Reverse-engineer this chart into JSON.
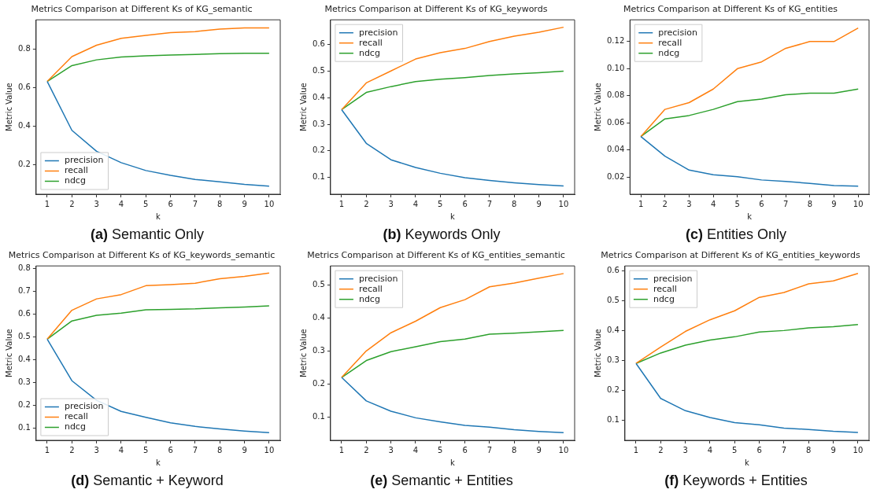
{
  "chart_data": [
    {
      "type": "line",
      "title": "Metrics Comparison at Different Ks of KG_semantic",
      "xlabel": "k",
      "ylabel": "Metric Value",
      "x": [
        1,
        2,
        3,
        4,
        5,
        6,
        7,
        8,
        9,
        10
      ],
      "xlim": [
        0.55,
        10.45
      ],
      "xticks": [
        1,
        2,
        3,
        4,
        5,
        6,
        7,
        8,
        9,
        10
      ],
      "ylim": [
        0.048,
        0.954
      ],
      "yticks": [
        0.2,
        0.4,
        0.6,
        0.8
      ],
      "grid": false,
      "legend": "bottom left",
      "marker": "none",
      "line_style": "solid",
      "annotations": [
        "(a) Semantic Only"
      ],
      "series": [
        {
          "name": "precision",
          "color": "#1f77b4",
          "values": [
            0.634,
            0.38,
            0.271,
            0.212,
            0.171,
            0.146,
            0.125,
            0.112,
            0.099,
            0.09
          ]
        },
        {
          "name": "recall",
          "color": "#ff7f0e",
          "values": [
            0.634,
            0.763,
            0.822,
            0.858,
            0.873,
            0.887,
            0.893,
            0.906,
            0.912,
            0.912
          ]
        },
        {
          "name": "ndcg",
          "color": "#2ca02c",
          "values": [
            0.634,
            0.716,
            0.746,
            0.761,
            0.767,
            0.771,
            0.774,
            0.778,
            0.78,
            0.78
          ]
        }
      ]
    },
    {
      "type": "line",
      "title": "Metrics Comparison at Different Ks of KG_keywords",
      "xlabel": "k",
      "ylabel": "Metric Value",
      "x": [
        1,
        2,
        3,
        4,
        5,
        6,
        7,
        8,
        9,
        10
      ],
      "xlim": [
        0.55,
        10.45
      ],
      "xticks": [
        1,
        2,
        3,
        4,
        5,
        6,
        7,
        8,
        9,
        10
      ],
      "ylim": [
        0.036,
        0.694
      ],
      "yticks": [
        0.1,
        0.2,
        0.3,
        0.4,
        0.5,
        0.6
      ],
      "grid": false,
      "legend": "top left",
      "marker": "none",
      "line_style": "solid",
      "annotations": [
        "(b) Keywords Only"
      ],
      "series": [
        {
          "name": "precision",
          "color": "#1f77b4",
          "values": [
            0.355,
            0.228,
            0.166,
            0.137,
            0.115,
            0.098,
            0.088,
            0.079,
            0.072,
            0.067
          ]
        },
        {
          "name": "recall",
          "color": "#ff7f0e",
          "values": [
            0.355,
            0.456,
            0.501,
            0.546,
            0.57,
            0.586,
            0.612,
            0.632,
            0.647,
            0.666
          ]
        },
        {
          "name": "ndcg",
          "color": "#2ca02c",
          "values": [
            0.355,
            0.42,
            0.442,
            0.461,
            0.47,
            0.476,
            0.484,
            0.49,
            0.494,
            0.5
          ]
        }
      ]
    },
    {
      "type": "line",
      "title": "Metrics Comparison at Different Ks of KG_entities",
      "xlabel": "k",
      "ylabel": "Metric Value",
      "x": [
        1,
        2,
        3,
        4,
        5,
        6,
        7,
        8,
        9,
        10
      ],
      "xlim": [
        0.55,
        10.45
      ],
      "xticks": [
        1,
        2,
        3,
        4,
        5,
        6,
        7,
        8,
        9,
        10
      ],
      "ylim": [
        0.0075,
        0.136
      ],
      "yticks": [
        {
          "value": 0.02,
          "label": "0.02"
        },
        {
          "value": 0.04,
          "label": "0.04"
        },
        {
          "value": 0.06,
          "label": "0.06"
        },
        {
          "value": 0.08,
          "label": "0.08"
        },
        {
          "value": 0.1,
          "label": "0.10"
        },
        {
          "value": 0.12,
          "label": "0.12"
        }
      ],
      "grid": false,
      "legend": "top left",
      "marker": "none",
      "line_style": "solid",
      "annotations": [
        "(c) Entities Only"
      ],
      "series": [
        {
          "name": "precision",
          "color": "#1f77b4",
          "values": [
            0.05,
            0.0355,
            0.0253,
            0.0218,
            0.0204,
            0.018,
            0.0169,
            0.0155,
            0.0139,
            0.0135
          ]
        },
        {
          "name": "recall",
          "color": "#ff7f0e",
          "values": [
            0.05,
            0.07,
            0.075,
            0.085,
            0.1,
            0.105,
            0.115,
            0.12,
            0.12,
            0.13
          ]
        },
        {
          "name": "ndcg",
          "color": "#2ca02c",
          "values": [
            0.05,
            0.063,
            0.0655,
            0.07,
            0.0757,
            0.0776,
            0.0808,
            0.082,
            0.082,
            0.085
          ]
        }
      ]
    },
    {
      "type": "line",
      "title": "Metrics Comparison at Different Ks of KG_keywords_semantic",
      "xlabel": "k",
      "ylabel": "Metric Value",
      "x": [
        1,
        2,
        3,
        4,
        5,
        6,
        7,
        8,
        9,
        10
      ],
      "xlim": [
        0.55,
        10.45
      ],
      "xticks": [
        1,
        2,
        3,
        4,
        5,
        6,
        7,
        8,
        9,
        10
      ],
      "ylim": [
        0.045,
        0.812
      ],
      "yticks": [
        0.1,
        0.2,
        0.3,
        0.4,
        0.5,
        0.6,
        0.7,
        0.8
      ],
      "grid": false,
      "legend": "bottom left",
      "marker": "none",
      "line_style": "solid",
      "annotations": [
        "(d) Semantic + Keyword"
      ],
      "series": [
        {
          "name": "precision",
          "color": "#1f77b4",
          "values": [
            0.49,
            0.307,
            0.221,
            0.172,
            0.146,
            0.122,
            0.106,
            0.095,
            0.086,
            0.079
          ]
        },
        {
          "name": "recall",
          "color": "#ff7f0e",
          "values": [
            0.49,
            0.617,
            0.667,
            0.686,
            0.725,
            0.73,
            0.736,
            0.756,
            0.766,
            0.781
          ]
        },
        {
          "name": "ndcg",
          "color": "#2ca02c",
          "values": [
            0.49,
            0.57,
            0.595,
            0.604,
            0.619,
            0.621,
            0.623,
            0.628,
            0.631,
            0.636
          ]
        }
      ]
    },
    {
      "type": "line",
      "title": "Metrics Comparison at Different Ks of KG_entities_semantic",
      "xlabel": "k",
      "ylabel": "Metric Value",
      "x": [
        1,
        2,
        3,
        4,
        5,
        6,
        7,
        8,
        9,
        10
      ],
      "xlim": [
        0.55,
        10.45
      ],
      "xticks": [
        1,
        2,
        3,
        4,
        5,
        6,
        7,
        8,
        9,
        10
      ],
      "ylim": [
        0.03,
        0.557
      ],
      "yticks": [
        0.1,
        0.2,
        0.3,
        0.4,
        0.5
      ],
      "grid": false,
      "legend": "top left",
      "marker": "none",
      "line_style": "solid",
      "annotations": [
        "(e) Semantic + Entities"
      ],
      "series": [
        {
          "name": "precision",
          "color": "#1f77b4",
          "values": [
            0.22,
            0.149,
            0.118,
            0.098,
            0.086,
            0.075,
            0.07,
            0.062,
            0.057,
            0.053
          ]
        },
        {
          "name": "recall",
          "color": "#ff7f0e",
          "values": [
            0.22,
            0.3,
            0.355,
            0.39,
            0.431,
            0.455,
            0.494,
            0.505,
            0.52,
            0.534
          ]
        },
        {
          "name": "ndcg",
          "color": "#2ca02c",
          "values": [
            0.22,
            0.271,
            0.298,
            0.313,
            0.328,
            0.336,
            0.351,
            0.354,
            0.358,
            0.362
          ]
        }
      ]
    },
    {
      "type": "line",
      "title": "Metrics Comparison at Different Ks of KG_entities_keywords",
      "xlabel": "k",
      "ylabel": "Metric Value",
      "x": [
        1,
        2,
        3,
        4,
        5,
        6,
        7,
        8,
        9,
        10
      ],
      "xlim": [
        0.55,
        10.45
      ],
      "xticks": [
        1,
        2,
        3,
        4,
        5,
        6,
        7,
        8,
        9,
        10
      ],
      "ylim": [
        0.034,
        0.617
      ],
      "yticks": [
        0.1,
        0.2,
        0.3,
        0.4,
        0.5,
        0.6
      ],
      "grid": false,
      "legend": "top left",
      "marker": "none",
      "line_style": "solid",
      "annotations": [
        "(f) Keywords + Entities"
      ],
      "series": [
        {
          "name": "precision",
          "color": "#1f77b4",
          "values": [
            0.291,
            0.174,
            0.133,
            0.11,
            0.093,
            0.086,
            0.075,
            0.07,
            0.064,
            0.06
          ]
        },
        {
          "name": "recall",
          "color": "#ff7f0e",
          "values": [
            0.291,
            0.346,
            0.398,
            0.437,
            0.467,
            0.512,
            0.528,
            0.557,
            0.567,
            0.592
          ]
        },
        {
          "name": "ndcg",
          "color": "#2ca02c",
          "values": [
            0.291,
            0.326,
            0.352,
            0.369,
            0.38,
            0.396,
            0.401,
            0.41,
            0.414,
            0.421
          ]
        }
      ]
    }
  ]
}
